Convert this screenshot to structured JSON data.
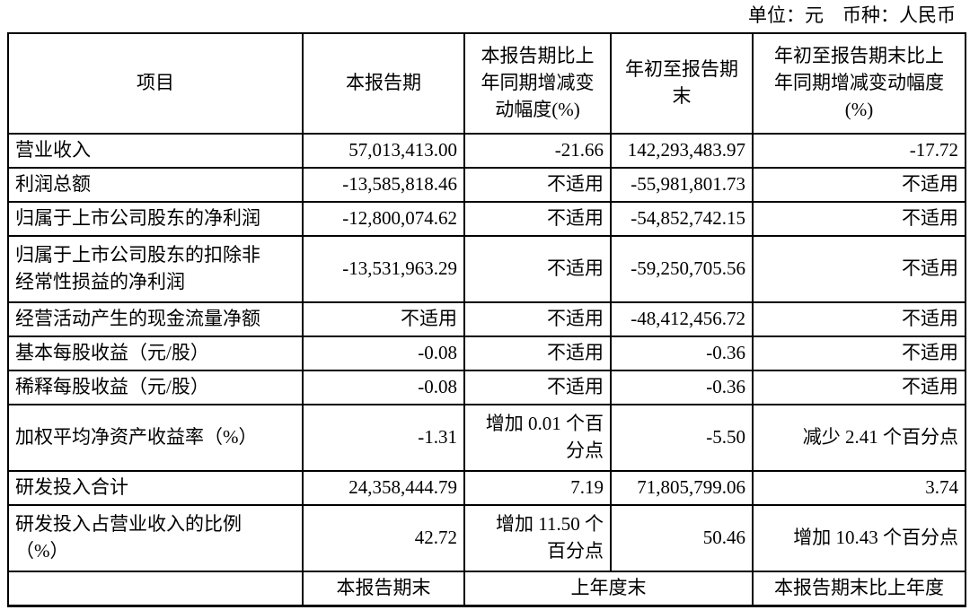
{
  "meta": {
    "unit_currency_label": "单位：元　币种：人民币"
  },
  "table": {
    "headers": {
      "item": "项目",
      "current_period": "本报告期",
      "current_vs_prior": "本报告期比上\n年同期增减变\n动幅度(%)",
      "ytd": "年初至报告期\n末",
      "ytd_vs_prior": "年初至报告期末比上\n年同期增减变动幅度\n(%)"
    },
    "rows": [
      {
        "item": "营业收入",
        "current": "57,013,413.00",
        "current_change": "-21.66",
        "ytd": "142,293,483.97",
        "ytd_change": "-17.72"
      },
      {
        "item": "利润总额",
        "current": "-13,585,818.46",
        "current_change": "不适用",
        "ytd": "-55,981,801.73",
        "ytd_change": "不适用"
      },
      {
        "item": "归属于上市公司股东的净利润",
        "current": "-12,800,074.62",
        "current_change": "不适用",
        "ytd": "-54,852,742.15",
        "ytd_change": "不适用"
      },
      {
        "item": "归属于上市公司股东的扣除非\n经常性损益的净利润",
        "current": "-13,531,963.29",
        "current_change": "不适用",
        "ytd": "-59,250,705.56",
        "ytd_change": "不适用"
      },
      {
        "item": "经营活动产生的现金流量净额",
        "current": "不适用",
        "current_change": "不适用",
        "ytd": "-48,412,456.72",
        "ytd_change": "不适用"
      },
      {
        "item": "基本每股收益（元/股）",
        "current": "-0.08",
        "current_change": "不适用",
        "ytd": "-0.36",
        "ytd_change": "不适用"
      },
      {
        "item": "稀释每股收益（元/股）",
        "current": "-0.08",
        "current_change": "不适用",
        "ytd": "-0.36",
        "ytd_change": "不适用"
      },
      {
        "item": "加权平均净资产收益率（%）",
        "current": "-1.31",
        "current_change": "增加 0.01 个百\n分点",
        "ytd": "-5.50",
        "ytd_change": "减少 2.41 个百分点"
      },
      {
        "item": "研发投入合计",
        "current": "24,358,444.79",
        "current_change": "7.19",
        "ytd": "71,805,799.06",
        "ytd_change": "3.74"
      },
      {
        "item": "研发投入占营业收入的比例\n（%）",
        "current": "42.72",
        "current_change": "增加 11.50 个\n百分点",
        "ytd": "50.46",
        "ytd_change": "增加 10.43 个百分点"
      }
    ],
    "footer": {
      "item": "",
      "current_period_end": "本报告期末",
      "prior_year_end": "上年度末",
      "period_end_vs_prior": "本报告期末比上年度"
    }
  }
}
